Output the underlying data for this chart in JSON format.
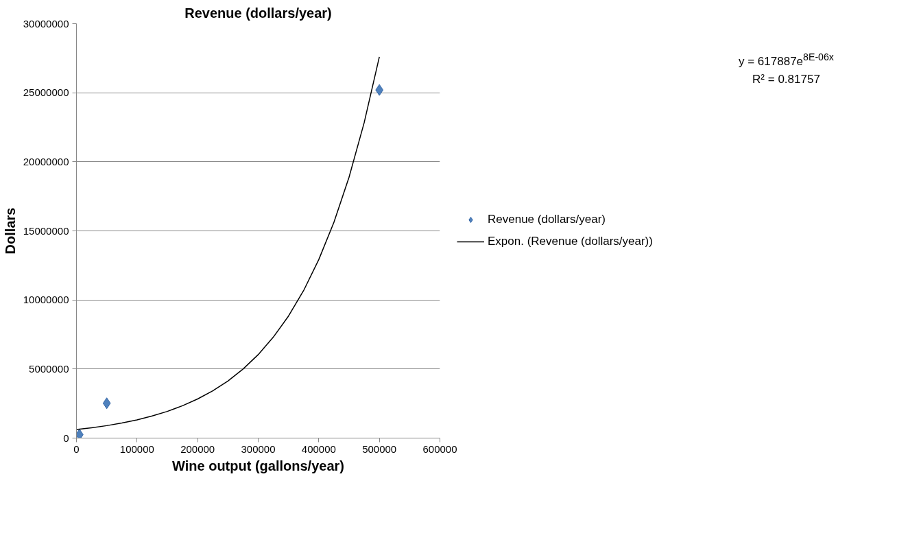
{
  "chart_data": {
    "type": "scatter",
    "title": "Revenue (dollars/year)",
    "xlabel": "Wine output (gallons/year)",
    "ylabel": "Dollars",
    "xlim": [
      0,
      600000
    ],
    "xticks": [
      0,
      100000,
      200000,
      300000,
      400000,
      500000,
      600000
    ],
    "ylim": [
      0,
      30000000
    ],
    "yticks": [
      0,
      5000000,
      10000000,
      15000000,
      20000000,
      25000000,
      30000000
    ],
    "grid": "y",
    "legend": "right",
    "marker": "diamond",
    "annotations": [
      "y = 617887e$^{8E-06x}$",
      "R² = 0.81757"
    ],
    "series": [
      {
        "name": "Revenue (dollars/year)",
        "color": "#4f81bd",
        "x": [
          5000,
          50000,
          500000
        ],
        "values": [
          250000,
          2520000,
          25200000
        ]
      },
      {
        "name": "Expon. (Revenue (dollars/year))",
        "type": "line",
        "color": "#000000",
        "marker": "none",
        "line_style": "solid",
        "x": [
          0,
          25000,
          50000,
          75000,
          100000,
          125000,
          150000,
          175000,
          200000,
          225000,
          250000,
          275000,
          300000,
          325000,
          350000,
          375000,
          400000,
          425000,
          450000,
          475000,
          500000
        ],
        "values": [
          620000,
          750000,
          900000,
          1090000,
          1320000,
          1600000,
          1930000,
          2340000,
          2830000,
          3420000,
          4130000,
          5000000,
          6040000,
          7310000,
          8830000,
          10680000,
          12920000,
          15620000,
          18890000,
          22840000,
          27600000
        ]
      }
    ]
  }
}
